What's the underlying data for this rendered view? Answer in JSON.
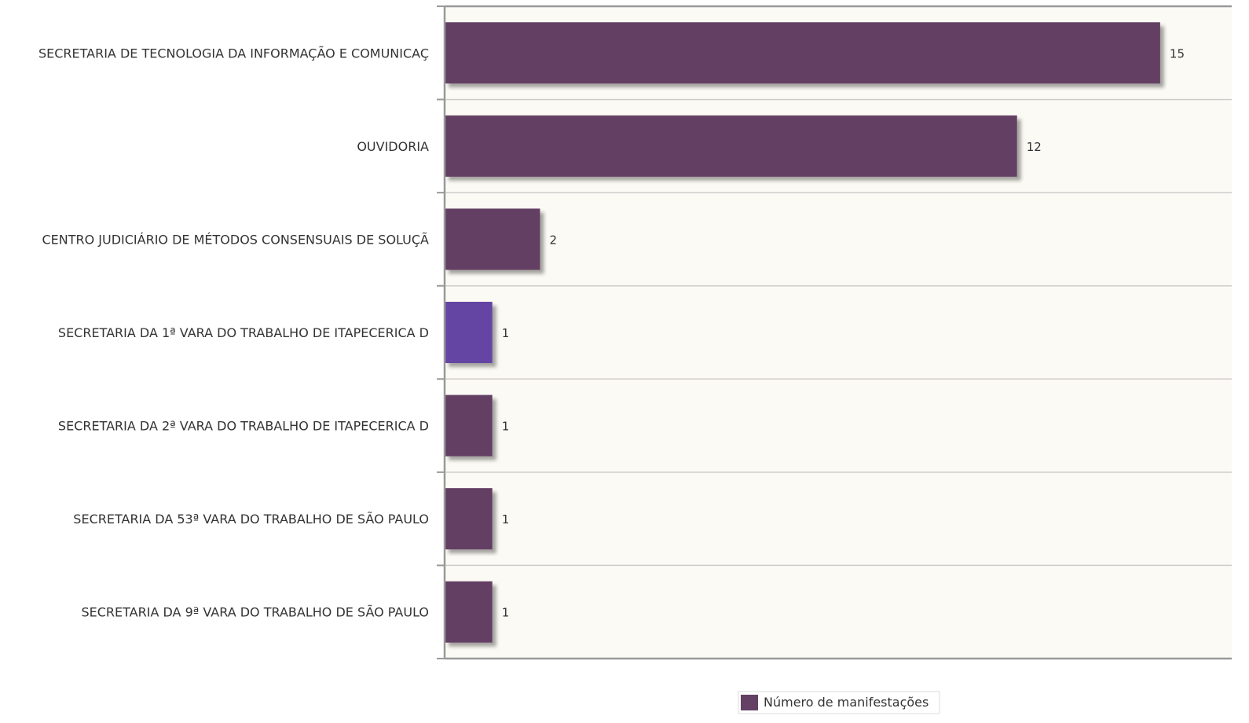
{
  "chart_data": {
    "type": "bar",
    "orientation": "horizontal",
    "categories": [
      "SECRETARIA DE TECNOLOGIA DA INFORMAÇÃO E COMUNICAÇ",
      "OUVIDORIA",
      "CENTRO JUDICIÁRIO DE MÉTODOS CONSENSUAIS DE SOLUÇÃ",
      "SECRETARIA DA 1ª VARA DO TRABALHO DE ITAPECERICA D",
      "SECRETARIA DA 2ª VARA DO TRABALHO DE ITAPECERICA D",
      "SECRETARIA DA 53ª VARA DO TRABALHO DE SÃO PAULO",
      "SECRETARIA DA 9ª VARA DO TRABALHO DE SÃO PAULO"
    ],
    "series": [
      {
        "name": "Número de manifestações",
        "values": [
          15,
          12,
          2,
          1,
          1,
          1,
          1
        ],
        "value_labels": [
          "15",
          "12",
          "2",
          "1",
          "1",
          "1",
          "1"
        ]
      }
    ],
    "xlim": [
      0,
      16.5
    ],
    "grid": true,
    "legend": "bottom-center",
    "colors": {
      "bar": "#634064",
      "bar_highlight": "#6545a4",
      "plot_background": "#fcfaf4",
      "axis": "#999999",
      "gridline": "#cccccc"
    }
  }
}
